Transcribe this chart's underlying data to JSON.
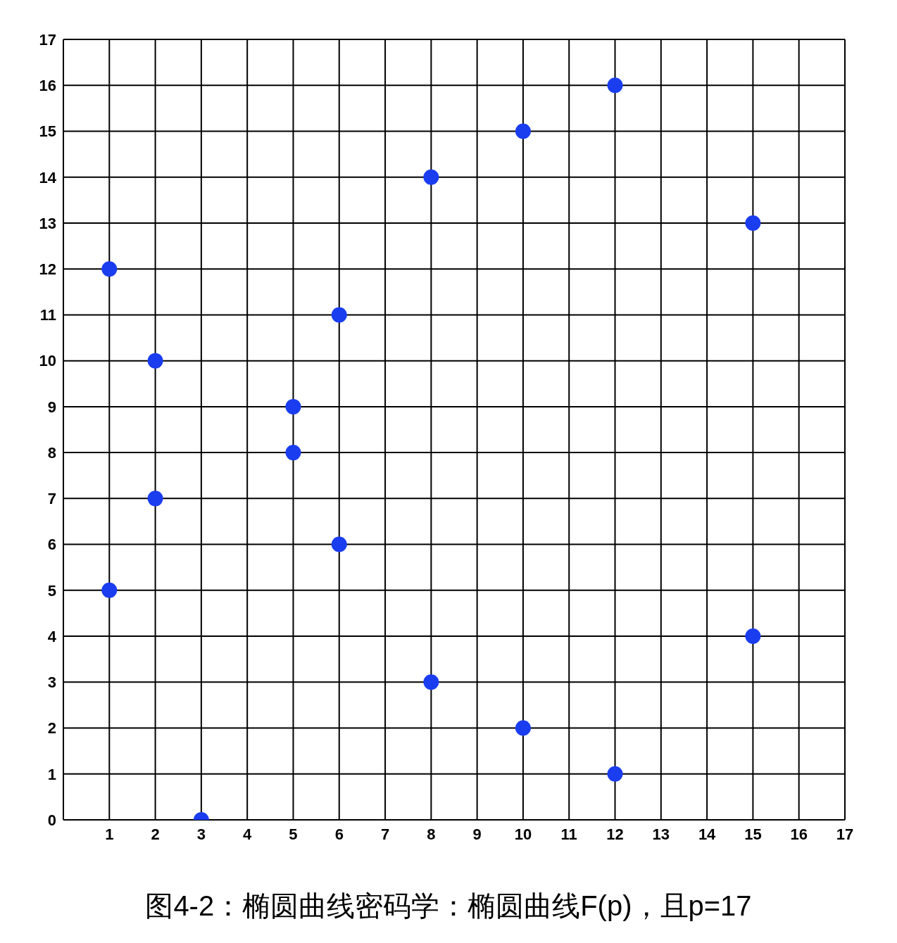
{
  "chart_data": {
    "type": "scatter",
    "title": "图4-2：椭圆曲线密码学：椭圆曲线F(p)，且p=17",
    "series": [
      {
        "color": "#1a3df0",
        "x": [
          1,
          1,
          2,
          2,
          3,
          5,
          5,
          6,
          6,
          8,
          8,
          10,
          10,
          12,
          12,
          15,
          15
        ],
        "values": [
          12,
          5,
          10,
          7,
          0,
          9,
          8,
          11,
          6,
          14,
          3,
          15,
          2,
          16,
          1,
          13,
          4
        ]
      }
    ],
    "xlim": [
      0,
      17
    ],
    "ylim": [
      0,
      17
    ],
    "xticks": [
      1,
      2,
      3,
      4,
      5,
      6,
      7,
      8,
      9,
      10,
      11,
      12,
      13,
      14,
      15,
      16,
      17
    ],
    "yticks": [
      0,
      1,
      2,
      3,
      4,
      5,
      6,
      7,
      8,
      9,
      10,
      11,
      12,
      13,
      14,
      15,
      16,
      17
    ],
    "grid": true,
    "marker": "circle"
  }
}
